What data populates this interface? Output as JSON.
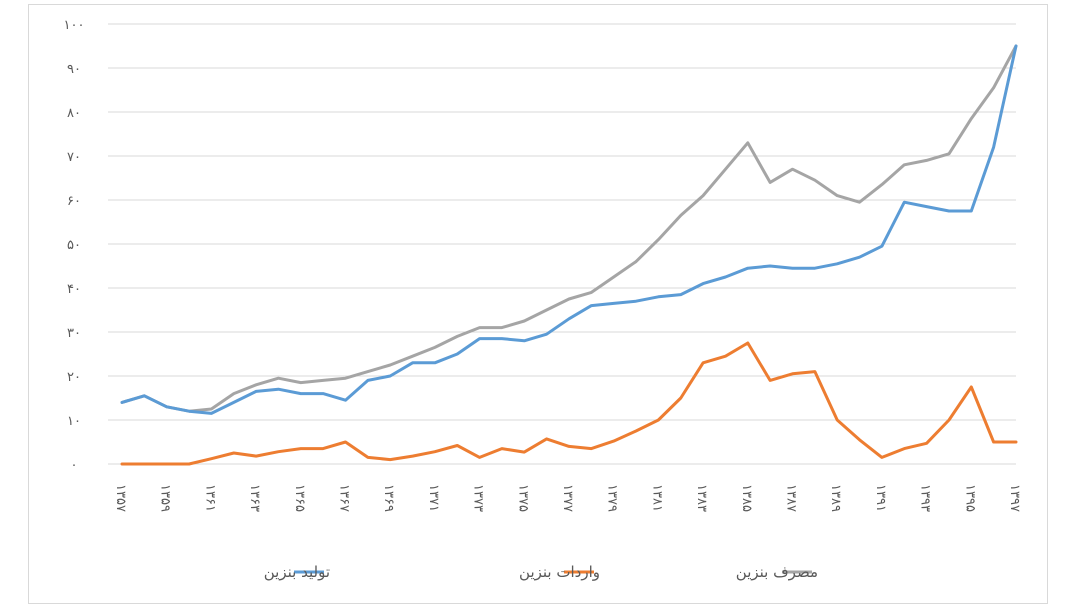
{
  "chart_data": {
    "type": "line",
    "ylim": [
      0,
      100
    ],
    "y_ticks": [
      "۰",
      "۱۰",
      "۲۰",
      "۳۰",
      "۴۰",
      "۵۰",
      "۶۰",
      "۷۰",
      "۸۰",
      "۹۰",
      "۱۰۰"
    ],
    "x_tick_labels": [
      "۱۳۵۷",
      "۱۳۵۹",
      "۱۳۶۱",
      "۱۳۶۳",
      "۱۳۶۵",
      "۱۳۶۷",
      "۱۳۶۹",
      "۱۳۷۱",
      "۱۳۷۳",
      "۱۳۷۵",
      "۱۳۷۷",
      "۱۳۷۹",
      "۱۳۸۱",
      "۱۳۸۳",
      "۱۳۸۵",
      "۱۳۸۷",
      "۱۳۸۹",
      "۱۳۹۱",
      "۱۳۹۳",
      "۱۳۹۵",
      "۱۳۹۷"
    ],
    "x": [
      1357,
      1358,
      1359,
      1360,
      1361,
      1362,
      1363,
      1364,
      1365,
      1366,
      1367,
      1368,
      1369,
      1370,
      1371,
      1372,
      1373,
      1374,
      1375,
      1376,
      1377,
      1378,
      1379,
      1380,
      1381,
      1382,
      1383,
      1384,
      1385,
      1386,
      1387,
      1388,
      1389,
      1390,
      1391,
      1392,
      1393,
      1394,
      1395,
      1396,
      1397
    ],
    "grid": true,
    "legend_position": "bottom",
    "series": [
      {
        "name": "تولید بنزین",
        "color": "#5b9bd5",
        "values": [
          14,
          15.5,
          13,
          12,
          11.5,
          14,
          16.5,
          17,
          16,
          16,
          14.5,
          19,
          20,
          23,
          23,
          25,
          28.5,
          28.5,
          28,
          29.5,
          33,
          36,
          36.5,
          37,
          38,
          38.5,
          41,
          42.5,
          44.5,
          45,
          44.5,
          44.5,
          45.5,
          47,
          49.5,
          59.5,
          58.5,
          57.5,
          57.5,
          72,
          95
        ]
      },
      {
        "name": "واردات بنزین",
        "color": "#ed7d31",
        "values": [
          0,
          0,
          0,
          0,
          1.2,
          2.5,
          1.8,
          2.8,
          3.5,
          3.5,
          5,
          1.5,
          1,
          1.8,
          2.8,
          4.2,
          1.5,
          3.5,
          2.7,
          5.7,
          4,
          3.5,
          5.2,
          7.5,
          10,
          15,
          23,
          24.5,
          27.5,
          19,
          20.5,
          21,
          10,
          5.5,
          1.5,
          3.5,
          4.7,
          10,
          17.5,
          5,
          5
        ]
      },
      {
        "name": "مصرف بنزین",
        "color": "#a5a5a5",
        "values": [
          14,
          15.5,
          13,
          12,
          12.5,
          16,
          18,
          19.5,
          18.5,
          19,
          19.5,
          21,
          22.5,
          24.5,
          26.5,
          29,
          31,
          31,
          32.5,
          35,
          37.5,
          39,
          42.5,
          46,
          51,
          56.5,
          61,
          67,
          73,
          64,
          67,
          64.5,
          61,
          59.5,
          63.5,
          68,
          69,
          70.5,
          78.5,
          85.5,
          95
        ]
      }
    ]
  }
}
